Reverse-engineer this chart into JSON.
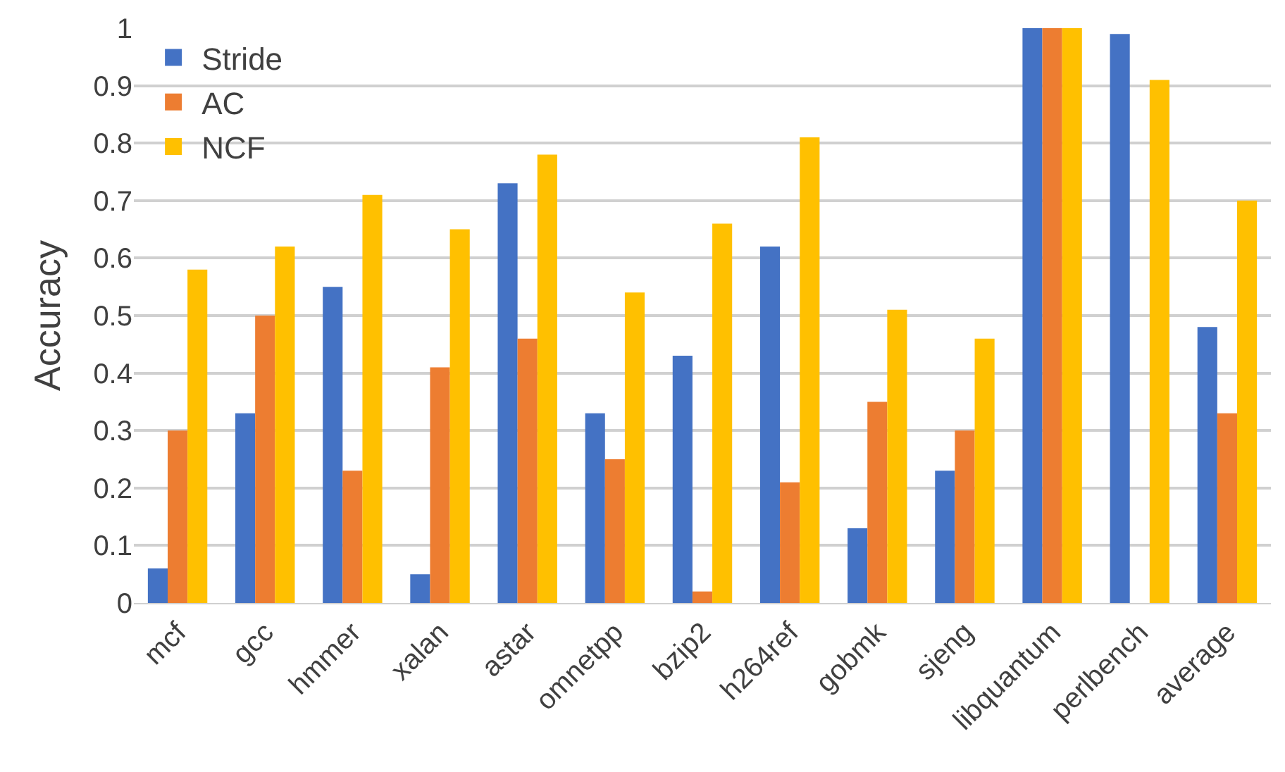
{
  "chart_data": {
    "type": "bar",
    "ylabel": "Accuracy",
    "categories": [
      "mcf",
      "gcc",
      "hmmer",
      "xalan",
      "astar",
      "omnetpp",
      "bzip2",
      "h264ref",
      "gobmk",
      "sjeng",
      "libquantum",
      "perlbench",
      "average"
    ],
    "series": [
      {
        "name": "Stride",
        "color": "#4472c4",
        "values": [
          0.06,
          0.33,
          0.55,
          0.05,
          0.73,
          0.33,
          0.43,
          0.62,
          0.13,
          0.23,
          1.0,
          0.99,
          0.48
        ]
      },
      {
        "name": "AC",
        "color": "#ed7d31",
        "values": [
          0.3,
          0.5,
          0.23,
          0.41,
          0.46,
          0.25,
          0.02,
          0.21,
          0.35,
          0.3,
          1.0,
          null,
          0.33
        ]
      },
      {
        "name": "NCF",
        "color": "#ffc000",
        "values": [
          0.58,
          0.62,
          0.71,
          0.65,
          0.78,
          0.54,
          0.66,
          0.81,
          0.51,
          0.46,
          1.0,
          0.91,
          0.7
        ]
      }
    ],
    "ylim": [
      0,
      1
    ],
    "yticks": [
      0,
      0.1,
      0.2,
      0.3,
      0.4,
      0.5,
      0.6,
      0.7,
      0.8,
      0.9,
      1
    ],
    "grid": "y",
    "legend": "top left"
  }
}
